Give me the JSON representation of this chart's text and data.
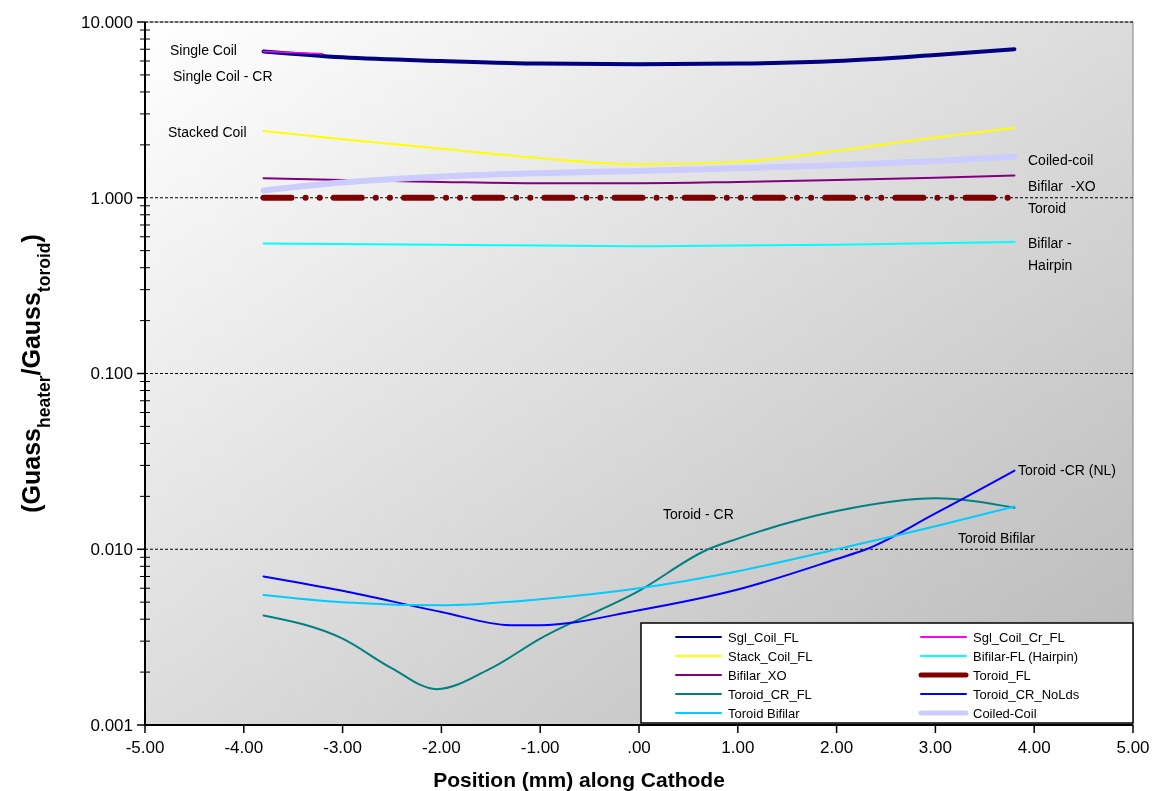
{
  "chart_data": {
    "type": "line",
    "xlabel": "Position (mm) along Cathode",
    "ylabel": "(Guass$_{heater}$/Gauss$_{toroid}$)",
    "log": "y",
    "grid": "y",
    "legend": "bottom right",
    "xlim": [
      -5,
      5
    ],
    "xticks": [
      {
        "value": -5,
        "label": "-5.00"
      },
      {
        "value": -4,
        "label": "-4.00"
      },
      {
        "value": -3,
        "label": "-3.00"
      },
      {
        "value": -2,
        "label": "-2.00"
      },
      {
        "value": -1,
        "label": "-1.00"
      },
      {
        "value": 0,
        "label": ".00"
      },
      {
        "value": 1,
        "label": "1.00"
      },
      {
        "value": 2,
        "label": "2.00"
      },
      {
        "value": 3,
        "label": "3.00"
      },
      {
        "value": 4,
        "label": "4.00"
      },
      {
        "value": 5,
        "label": "5.00"
      }
    ],
    "ylim": [
      0.001,
      10
    ],
    "yticks": [
      {
        "value": 0.001,
        "label": "0.001"
      },
      {
        "value": 0.01,
        "label": "0.010"
      },
      {
        "value": 0.1,
        "label": "0.100"
      },
      {
        "value": 1,
        "label": "1.000"
      },
      {
        "value": 10,
        "label": "10.000"
      }
    ],
    "series": [
      {
        "name": "Sgl_Coil_FL",
        "color": "#000080",
        "x": [
          -3.8,
          -3,
          -2,
          -1,
          0,
          1,
          2,
          3,
          3.8
        ],
        "values": [
          6.8,
          6.3,
          6.0,
          5.8,
          5.75,
          5.8,
          6.0,
          6.5,
          7.0
        ]
      },
      {
        "name": "Sgl_Coil_Cr_FL",
        "color": "#ff00ff",
        "x": [
          -3.8,
          -3.5,
          -3.2
        ],
        "values": [
          6.8,
          6.7,
          6.6
        ]
      },
      {
        "name": "Stack_Coil_FL",
        "color": "#ffff00",
        "x": [
          -3.8,
          -3,
          -2,
          -1,
          0,
          1,
          2,
          3,
          3.8
        ],
        "values": [
          2.4,
          2.15,
          1.9,
          1.68,
          1.55,
          1.6,
          1.85,
          2.2,
          2.5
        ]
      },
      {
        "name": "Bifilar-FL (Hairpin)",
        "color": "#00ffff",
        "x": [
          -3.8,
          -2,
          0,
          2,
          3.8
        ],
        "values": [
          0.55,
          0.54,
          0.53,
          0.54,
          0.56
        ]
      },
      {
        "name": "Bifilar_XO",
        "color": "#800080",
        "x": [
          -3.8,
          -3,
          -2,
          -1,
          0,
          1,
          2,
          3,
          3.8
        ],
        "values": [
          1.29,
          1.26,
          1.23,
          1.21,
          1.21,
          1.23,
          1.26,
          1.3,
          1.34
        ]
      },
      {
        "name": "Toroid_FL",
        "color": "#800000",
        "line_style": "dashed",
        "x": [
          -3.8,
          3.8
        ],
        "values": [
          1.0,
          1.0
        ]
      },
      {
        "name": "Toroid_CR_FL",
        "color": "#008080",
        "x": [
          -3.8,
          -3,
          -2.5,
          -2.05,
          -1.5,
          -1,
          0,
          0.7,
          1,
          2,
          3,
          3.8
        ],
        "values": [
          0.0042,
          0.0031,
          0.0021,
          0.0016,
          0.0021,
          0.0031,
          0.0058,
          0.01,
          0.0115,
          0.0165,
          0.0195,
          0.0172
        ]
      },
      {
        "name": "Toroid_CR_NoLds",
        "color": "#0000ff",
        "x": [
          -3.8,
          -3,
          -2,
          -1.3,
          -1,
          0,
          1,
          2,
          2.3,
          3,
          3.8
        ],
        "values": [
          0.007,
          0.0058,
          0.0044,
          0.0037,
          0.0037,
          0.0045,
          0.0059,
          0.0088,
          0.01,
          0.016,
          0.028
        ]
      },
      {
        "name": "Toroid Bifilar",
        "color": "#00ccff",
        "x": [
          -3.8,
          -3,
          -2,
          -1,
          0,
          1,
          2,
          3,
          3.8
        ],
        "values": [
          0.0055,
          0.005,
          0.0048,
          0.0052,
          0.006,
          0.0075,
          0.01,
          0.0135,
          0.0175
        ]
      },
      {
        "name": "Coiled-Coil",
        "color": "#ccccff",
        "x": [
          -3.8,
          -3,
          -2,
          -1,
          0,
          1,
          2,
          3,
          3.8
        ],
        "values": [
          1.1,
          1.22,
          1.32,
          1.38,
          1.42,
          1.47,
          1.53,
          1.62,
          1.71
        ]
      }
    ],
    "annotations": [
      "Single Coil",
      "Single Coil - CR",
      "Stacked Coil",
      "Coiled-coil",
      "Bifilar  -XO",
      "Toroid",
      "Bifilar -",
      "Hairpin",
      "Toroid -CR (NL)",
      "Toroid - CR",
      "Toroid Bifilar"
    ]
  }
}
